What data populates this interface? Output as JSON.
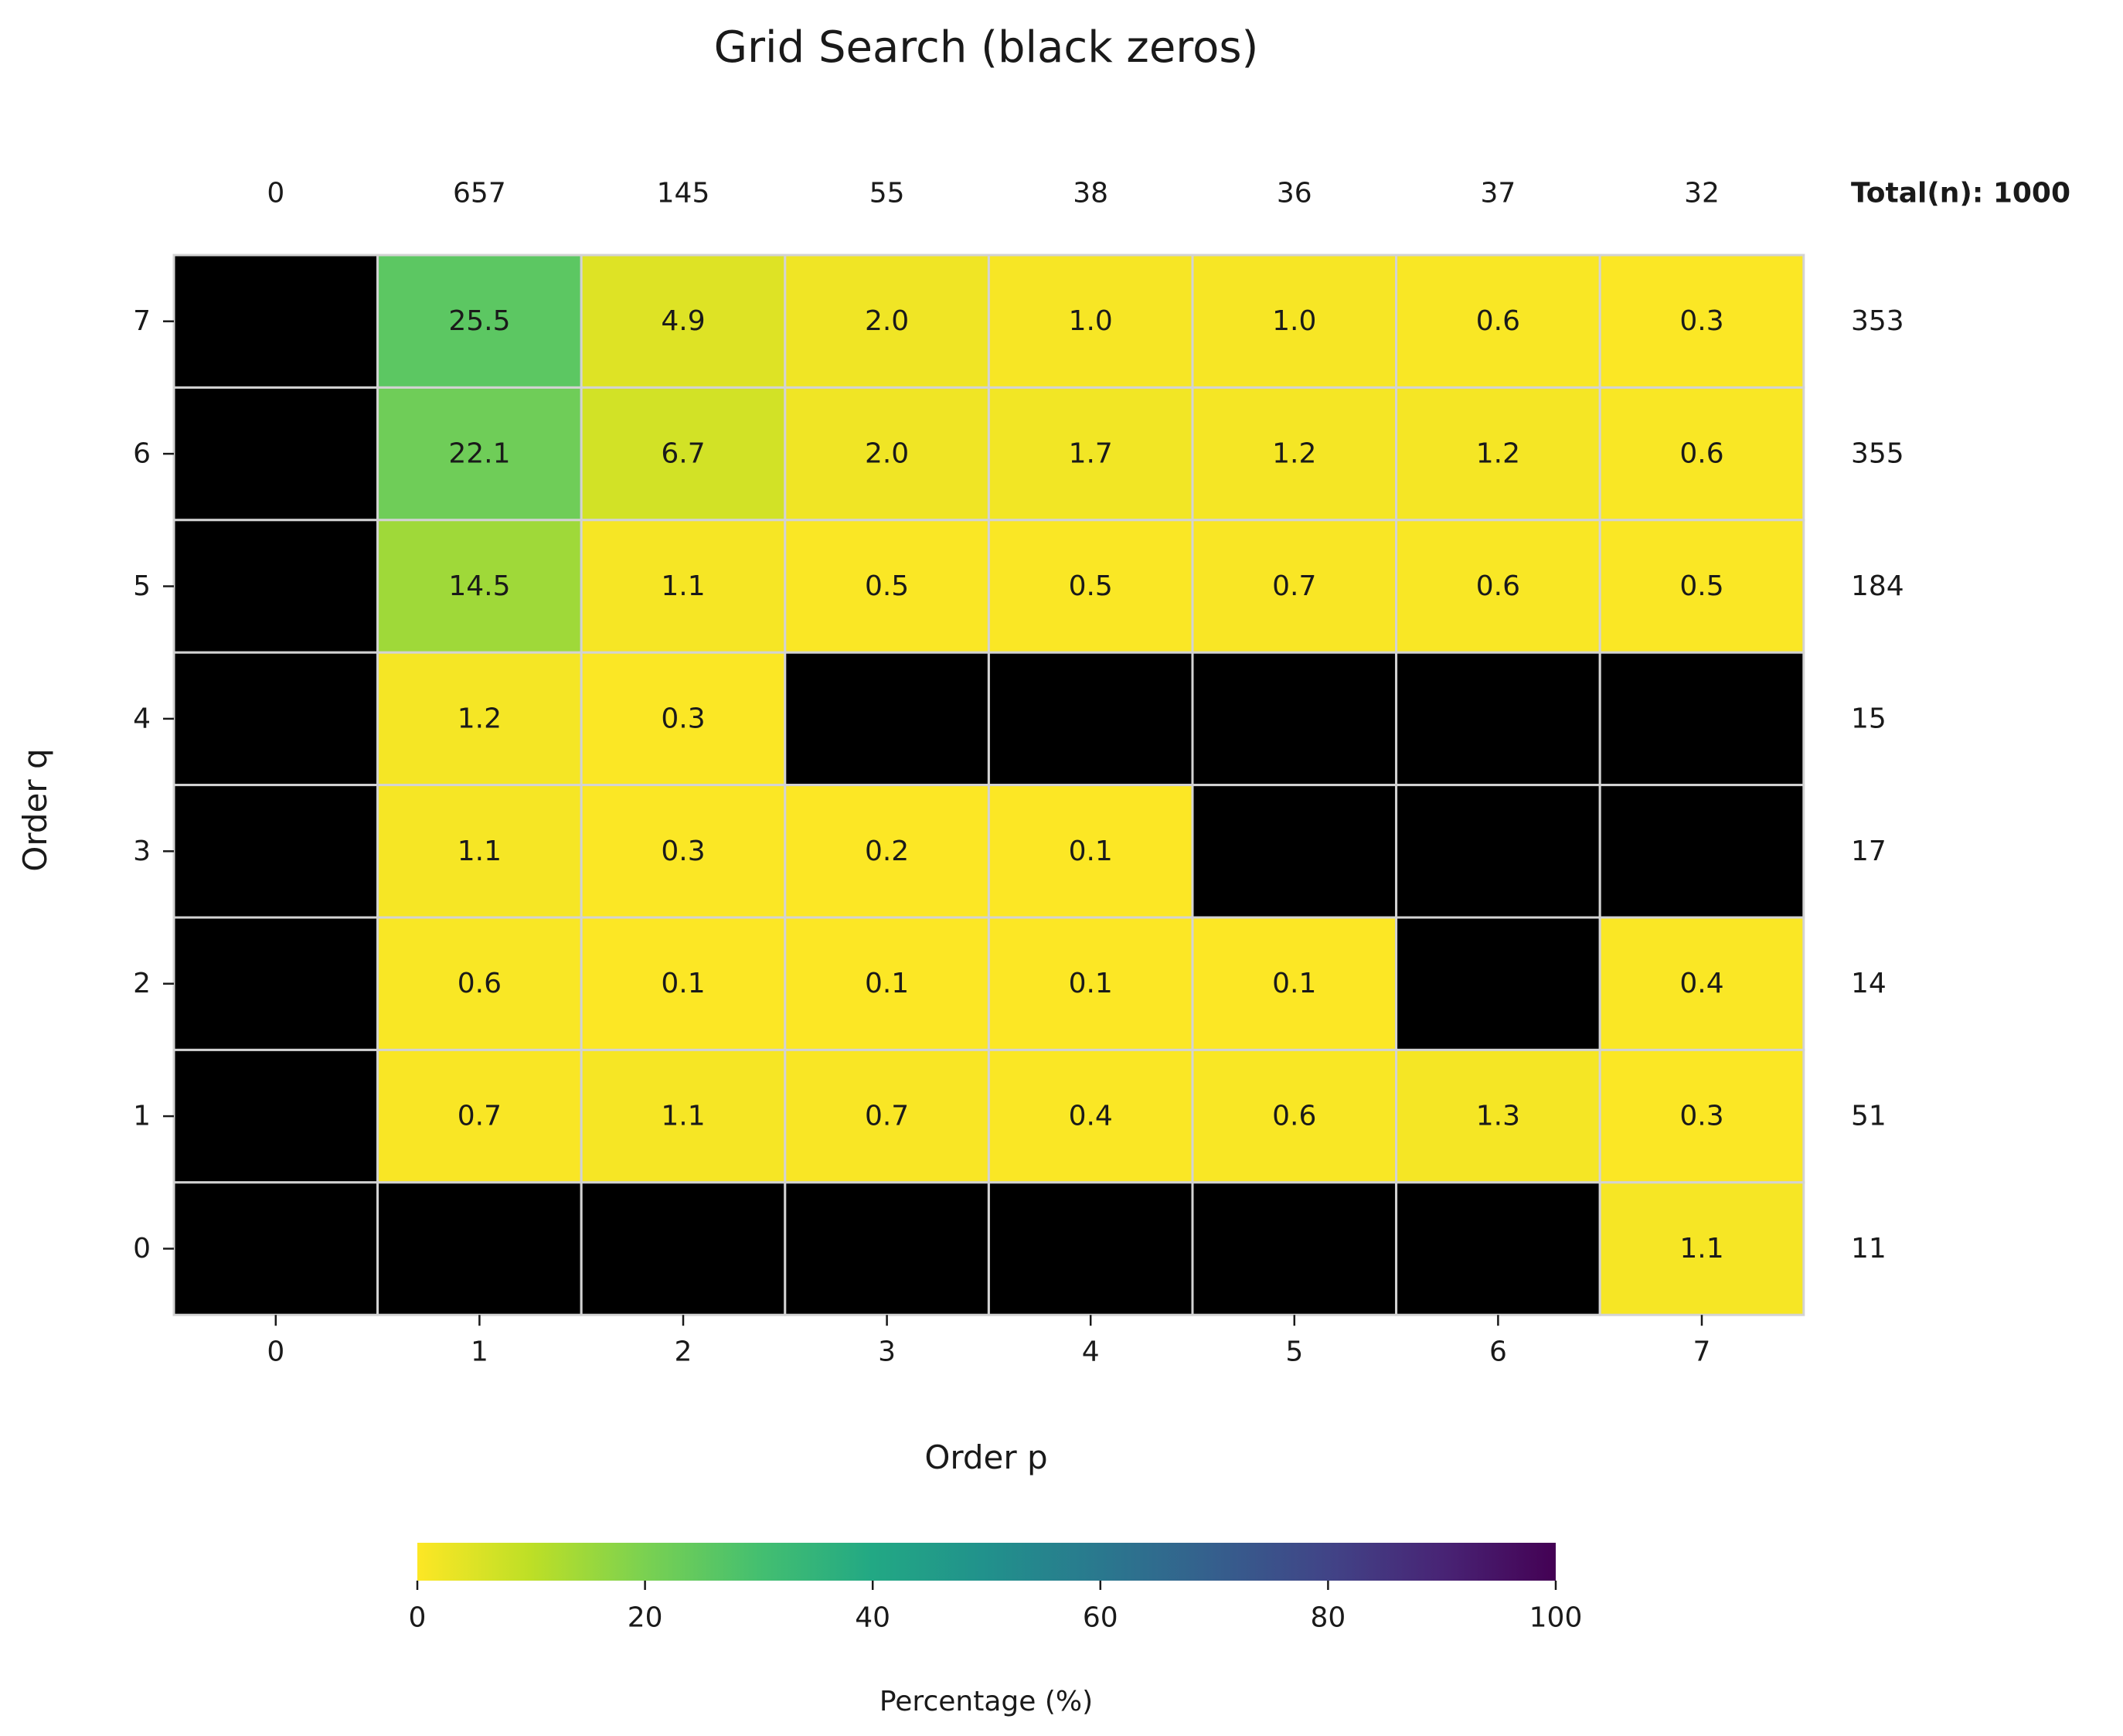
{
  "chart_data": {
    "type": "heatmap",
    "title": "Grid Search (black zeros)",
    "xlabel": "Order p",
    "ylabel": "Order q",
    "x": [
      0,
      1,
      2,
      3,
      4,
      5,
      6,
      7
    ],
    "y": [
      7,
      6,
      5,
      4,
      3,
      2,
      1,
      0
    ],
    "values": [
      [
        0,
        25.5,
        4.9,
        2.0,
        1.0,
        1.0,
        0.6,
        0.3
      ],
      [
        0,
        22.1,
        6.7,
        2.0,
        1.7,
        1.2,
        1.2,
        0.6
      ],
      [
        0,
        14.5,
        1.1,
        0.5,
        0.5,
        0.7,
        0.6,
        0.5
      ],
      [
        0,
        1.2,
        0.3,
        0,
        0,
        0,
        0,
        0
      ],
      [
        0,
        1.1,
        0.3,
        0.2,
        0.1,
        0,
        0,
        0
      ],
      [
        0,
        0.6,
        0.1,
        0.1,
        0.1,
        0.1,
        0,
        0.4
      ],
      [
        0,
        0.7,
        1.1,
        0.7,
        0.4,
        0.6,
        1.3,
        0.3
      ],
      [
        0,
        0,
        0,
        0,
        0,
        0,
        0,
        1.1
      ]
    ],
    "column_totals": [
      "0",
      "657",
      "145",
      "55",
      "38",
      "36",
      "37",
      "32"
    ],
    "row_totals": [
      "353",
      "355",
      "184",
      "15",
      "17",
      "14",
      "51",
      "11"
    ],
    "total_label": "Total(n): 1000",
    "zero_color": "#000000",
    "grid_line_color": "#d3d3d3",
    "colormap": "viridis_r",
    "colorbar": {
      "label": "Percentage (%)",
      "range": [
        0,
        100
      ],
      "ticks": [
        "0",
        "20",
        "40",
        "60",
        "80",
        "100"
      ],
      "orientation": "horizontal",
      "placement": "bottom"
    }
  }
}
